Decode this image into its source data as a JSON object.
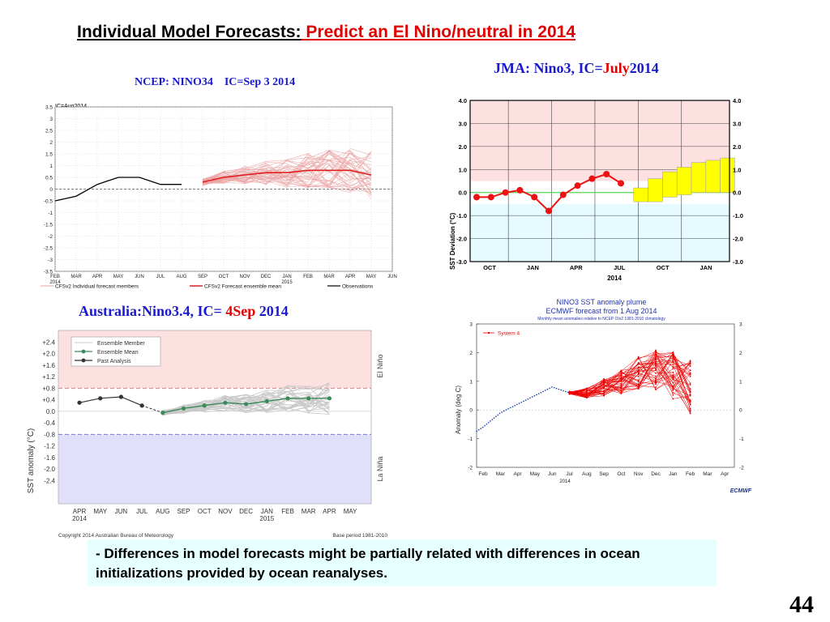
{
  "slide": {
    "title_black": "Individual Model Forecasts:",
    "title_red": " Predict an El Nino/neutral in 2014",
    "note": "- Differences in model forecasts might be partially related with differences in ocean initializations provided by ocean reanalyses.",
    "page_number": "44"
  },
  "panels": {
    "ncep_title": "NCEP: NINO34    IC=Sep 3 2014",
    "jma_title_a": "JMA: Nino3, IC=",
    "jma_title_b": "July",
    "jma_title_c": "2014",
    "aus_title_a": "Australia:Nino3.4, IC= ",
    "aus_title_b": "4Sep",
    "aus_title_c": " 2014"
  },
  "colors": {
    "observed": "#000000",
    "member": "#e8a0a0",
    "mean": "#e02020",
    "jma_obs": "#ee1111",
    "jma_box": "#ffff00",
    "ensemble_mean": "#3a8a5a",
    "elnino_bg": "#fde0e0",
    "lanina_bg": "#e0e0fa",
    "ecmwf": "#ee0000",
    "past": "#1a3aaa"
  },
  "chart_data": [
    {
      "id": "ncep",
      "type": "line",
      "title": "",
      "subtitle": "IC=Aug2014",
      "ylim": [
        -3.5,
        3.5
      ],
      "yticks": [
        "3.5",
        "3",
        "2.5",
        "2",
        "1.5",
        "1",
        "0.5",
        "0",
        "-0.5",
        "-1",
        "-1.5",
        "-2",
        "-2.5",
        "-3",
        "-3.5"
      ],
      "ytick_values": [
        3.5,
        3,
        2.5,
        2,
        1.5,
        1,
        0.5,
        0,
        -0.5,
        -1,
        -1.5,
        -2,
        -2.5,
        -3,
        -3.5
      ],
      "categories": [
        "FEB",
        "MAR",
        "APR",
        "MAY",
        "JUN",
        "JUL",
        "AUG",
        "SEP",
        "OCT",
        "NOV",
        "DEC",
        "JAN",
        "FEB",
        "MAR",
        "APR",
        "MAY",
        "JUN"
      ],
      "year_labels": [
        "2014",
        "2015"
      ],
      "observed": [
        -0.5,
        -0.3,
        0.2,
        0.5,
        0.5,
        0.2,
        0.2,
        null,
        null,
        null,
        null,
        null,
        null,
        null,
        null,
        null,
        null
      ],
      "ensemble_mean": [
        null,
        null,
        null,
        null,
        null,
        null,
        null,
        0.3,
        0.5,
        0.6,
        0.7,
        0.7,
        0.8,
        0.8,
        0.8,
        0.6,
        null
      ],
      "legend": [
        "CFSv2 Individual forecast members",
        "CFSv2 Forecast ensemble mean",
        "Observations"
      ]
    },
    {
      "id": "jma",
      "type": "line",
      "ylabel": "SST Deviation (°C)",
      "ylim": [
        -3.0,
        4.0
      ],
      "yticks": [
        "4.0",
        "3.0",
        "2.0",
        "1.0",
        "0.0",
        "-1.0",
        "-2.0",
        "-3.0"
      ],
      "ytick_values": [
        4,
        3,
        2,
        1,
        0,
        -1,
        -2,
        -3
      ],
      "xticks": [
        "OCT",
        "JAN",
        "APR",
        "JUL",
        "OCT",
        "JAN"
      ],
      "year_label": "2014",
      "observed": [
        -0.2,
        -0.2,
        0.0,
        0.1,
        -0.2,
        -0.8,
        -0.1,
        0.3,
        0.6,
        0.8,
        0.4
      ],
      "forecast_range": [
        [
          -0.4,
          0.2
        ],
        [
          -0.4,
          0.6
        ],
        [
          -0.2,
          0.9
        ],
        [
          -0.1,
          1.1
        ],
        [
          0.0,
          1.3
        ],
        [
          0.0,
          1.4
        ],
        [
          0.0,
          1.5
        ]
      ]
    },
    {
      "id": "bom",
      "type": "line",
      "ylabel": "SST anomaly (°C)",
      "ylim": [
        -3.2,
        2.8
      ],
      "yticks": [
        "+2.4",
        "+2.0",
        "+1.6",
        "+1.2",
        "+0.8",
        "+0.4",
        "0.0",
        "-0.4",
        "-0.8",
        "-1.2",
        "-1.6",
        "-2.0",
        "-2.4"
      ],
      "ytick_values": [
        2.4,
        2.0,
        1.6,
        1.2,
        0.8,
        0.4,
        0.0,
        -0.4,
        -0.8,
        -1.2,
        -1.6,
        -2.0,
        -2.4
      ],
      "categories": [
        "APR",
        "MAY",
        "JUN",
        "JUL",
        "AUG",
        "SEP",
        "OCT",
        "NOV",
        "DEC",
        "JAN",
        "FEB",
        "MAR",
        "APR",
        "MAY"
      ],
      "year_labels": [
        "2014",
        "2015"
      ],
      "past_analysis": [
        0.3,
        0.45,
        0.5,
        0.2
      ],
      "ensemble_mean": [
        -0.05,
        0.1,
        0.2,
        0.3,
        0.25,
        0.35,
        0.45,
        0.45,
        0.45
      ],
      "legend": [
        "Ensemble Member",
        "Ensemble Mean",
        "Past Analysis"
      ],
      "side_labels": [
        "El Niño",
        "La Niña"
      ],
      "footer_left": "Copyright 2014 Australian Bureau of Meteorology",
      "footer_right": "Base period 1981-2010"
    },
    {
      "id": "ecmwf",
      "type": "line",
      "title": "NINO3 SST anomaly plume",
      "subtitle": "ECMWF forecast from 1 Aug 2014",
      "subtitle2": "Monthly mean anomalies relative to NCEP OIv2 1981-2010 climatology",
      "ylabel": "Anomaly (deg C)",
      "ylim": [
        -2,
        3
      ],
      "yticks": [
        "3",
        "2",
        "1",
        "0",
        "-1",
        "-2"
      ],
      "ytick_values": [
        3,
        2,
        1,
        0,
        -1,
        -2
      ],
      "categories": [
        "Feb",
        "Mar",
        "Apr",
        "May",
        "Jun",
        "Jul",
        "Aug",
        "Sep",
        "Oct",
        "Nov",
        "Dec",
        "Jan",
        "Feb",
        "Mar",
        "Apr"
      ],
      "year_label": "2014",
      "legend": [
        "System 4"
      ],
      "logo": "ECMWF",
      "observed": [
        -0.6,
        -0.1,
        0.2,
        0.5,
        0.8,
        0.6
      ],
      "forecast_mean": [
        0.6,
        0.6,
        0.8,
        1.0,
        1.3,
        1.4,
        1.2,
        0.8
      ]
    }
  ]
}
